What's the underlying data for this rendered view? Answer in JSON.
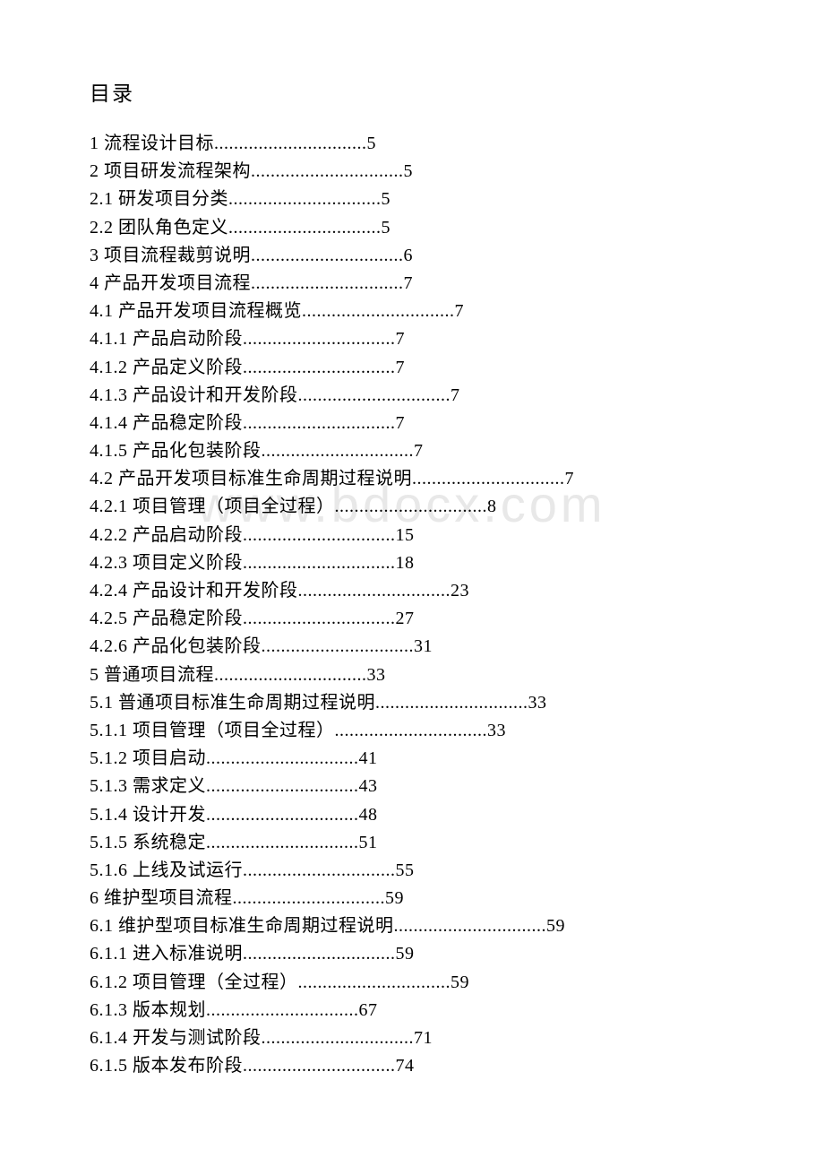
{
  "title": "目录",
  "watermark_text": "www.bdocx.com",
  "text_color": "#000000",
  "background_color": "#ffffff",
  "watermark_color": "#e8e8e8",
  "font_family": "SimSun",
  "title_fontsize": 23,
  "entry_fontsize": 20,
  "entries": [
    {
      "label": "1 流程设计目标",
      "dots": "...............................",
      "page": "5"
    },
    {
      "label": "2 项目研发流程架构",
      "dots": "...............................",
      "page": "5"
    },
    {
      "label": "2.1 研发项目分类",
      "dots": "...............................",
      "page": "5"
    },
    {
      "label": "2.2 团队角色定义",
      "dots": "...............................",
      "page": "5"
    },
    {
      "label": "3 项目流程裁剪说明",
      "dots": "...............................",
      "page": "6"
    },
    {
      "label": "4 产品开发项目流程",
      "dots": "...............................",
      "page": "7"
    },
    {
      "label": "4.1 产品开发项目流程概览",
      "dots": "...............................",
      "page": "7"
    },
    {
      "label": "4.1.1 产品启动阶段",
      "dots": "...............................",
      "page": "7"
    },
    {
      "label": "4.1.2 产品定义阶段",
      "dots": "...............................",
      "page": "7"
    },
    {
      "label": "4.1.3 产品设计和开发阶段",
      "dots": "...............................",
      "page": "7"
    },
    {
      "label": "4.1.4 产品稳定阶段",
      "dots": "...............................",
      "page": "7"
    },
    {
      "label": "4.1.5 产品化包装阶段",
      "dots": "...............................",
      "page": "7"
    },
    {
      "label": "4.2 产品开发项目标准生命周期过程说明",
      "dots": "...............................",
      "page": "7"
    },
    {
      "label": "4.2.1 项目管理（项目全过程）",
      "dots": "...............................",
      "page": "8"
    },
    {
      "label": "4.2.2 产品启动阶段",
      "dots": "...............................",
      "page": "15"
    },
    {
      "label": "4.2.3 项目定义阶段",
      "dots": "...............................",
      "page": "18"
    },
    {
      "label": "4.2.4 产品设计和开发阶段",
      "dots": "...............................",
      "page": "23"
    },
    {
      "label": "4.2.5 产品稳定阶段",
      "dots": "...............................",
      "page": "27"
    },
    {
      "label": "4.2.6 产品化包装阶段",
      "dots": "...............................",
      "page": "31"
    },
    {
      "label": "5 普通项目流程",
      "dots": "...............................",
      "page": "33"
    },
    {
      "label": "5.1 普通项目标准生命周期过程说明",
      "dots": "...............................",
      "page": "33"
    },
    {
      "label": "5.1.1 项目管理（项目全过程）",
      "dots": "...............................",
      "page": "33"
    },
    {
      "label": "5.1.2 项目启动",
      "dots": "...............................",
      "page": "41"
    },
    {
      "label": "5.1.3 需求定义",
      "dots": "...............................",
      "page": "43"
    },
    {
      "label": "5.1.4 设计开发",
      "dots": "...............................",
      "page": "48"
    },
    {
      "label": "5.1.5 系统稳定",
      "dots": "...............................",
      "page": "51"
    },
    {
      "label": "5.1.6 上线及试运行",
      "dots": "...............................",
      "page": "55"
    },
    {
      "label": "6 维护型项目流程",
      "dots": "...............................",
      "page": "59"
    },
    {
      "label": "6.1 维护型项目标准生命周期过程说明",
      "dots": "...............................",
      "page": "59"
    },
    {
      "label": "6.1.1 进入标准说明",
      "dots": "...............................",
      "page": "59"
    },
    {
      "label": "6.1.2 项目管理（全过程）",
      "dots": "...............................",
      "page": "59"
    },
    {
      "label": "6.1.3 版本规划",
      "dots": "...............................",
      "page": "67"
    },
    {
      "label": "6.1.4 开发与测试阶段",
      "dots": "...............................",
      "page": "71"
    },
    {
      "label": "6.1.5 版本发布阶段",
      "dots": "...............................",
      "page": "74"
    }
  ]
}
